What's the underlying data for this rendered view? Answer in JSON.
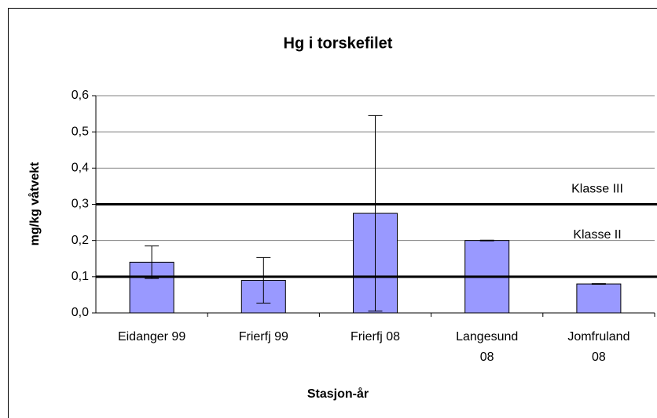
{
  "chart_data": {
    "type": "bar",
    "title": "Hg i torskefilet",
    "x_label": "Stasjon-år",
    "y_label": "mg/kg våtvekt",
    "categories": [
      "Eidanger 99",
      "Frierfj  99",
      "Frierfj 08",
      "Langesund\n08",
      "Jomfruland\n08"
    ],
    "values": [
      0.14,
      0.09,
      0.275,
      0.2,
      0.08
    ],
    "errors": [
      0.045,
      0.063,
      0.27,
      0.001,
      0.001
    ],
    "color": "#9999ff",
    "ylim": [
      0,
      0.6
    ],
    "yticks": [
      {
        "value": 0,
        "label": "0,0"
      },
      {
        "value": 0.1,
        "label": "0,1"
      },
      {
        "value": 0.2,
        "label": "0,2"
      },
      {
        "value": 0.3,
        "label": "0,3"
      },
      {
        "value": 0.4,
        "label": "0,4"
      },
      {
        "value": 0.5,
        "label": "0,5"
      },
      {
        "value": 0.6,
        "label": "0,6"
      }
    ],
    "grid": true,
    "reference_lines": [
      {
        "value": 0.3,
        "label": "Klasse III"
      },
      {
        "value": 0.1,
        "label": "Klasse II"
      }
    ]
  }
}
